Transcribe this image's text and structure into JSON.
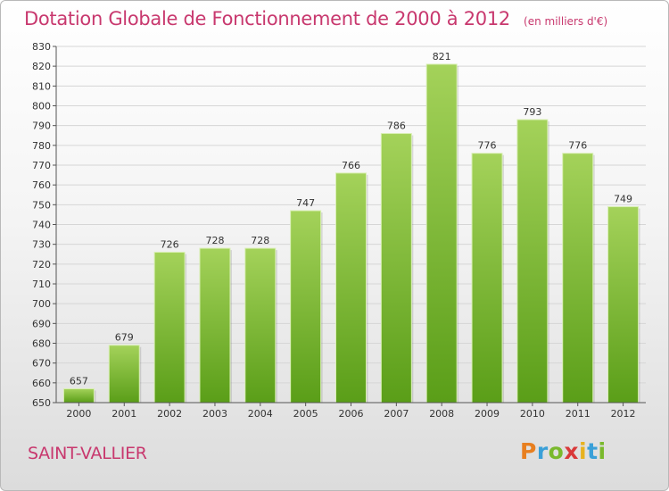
{
  "title": "Dotation Globale de Fonctionnement de 2000 à 2012",
  "subtitle": "(en milliers d'€)",
  "place": "SAINT-VALLIER",
  "logo": {
    "letters": [
      "P",
      "r",
      "o",
      "x",
      "i",
      "t",
      "i"
    ],
    "colors": [
      "#e87f1f",
      "#3aa0d8",
      "#7ab92d",
      "#d9393a",
      "#e8b21f",
      "#3aa0d8",
      "#7ab92d"
    ]
  },
  "colors": {
    "bar_top": "#a4d25a",
    "bar_bottom": "#5a9e18",
    "grid": "#d6d6d6",
    "axis": "#555555",
    "accent": "#c8386e"
  },
  "chart_data": {
    "type": "bar",
    "categories": [
      "2000",
      "2001",
      "2002",
      "2003",
      "2004",
      "2005",
      "2006",
      "2007",
      "2008",
      "2009",
      "2010",
      "2011",
      "2012"
    ],
    "values": [
      657,
      679,
      726,
      728,
      728,
      747,
      766,
      786,
      821,
      776,
      793,
      776,
      749
    ],
    "title": "Dotation Globale de Fonctionnement de 2000 à 2012",
    "ylim": [
      650,
      830
    ],
    "yticks": [
      650,
      660,
      670,
      680,
      690,
      700,
      710,
      720,
      730,
      740,
      750,
      760,
      770,
      780,
      790,
      800,
      810,
      820,
      830
    ],
    "grid": true
  }
}
